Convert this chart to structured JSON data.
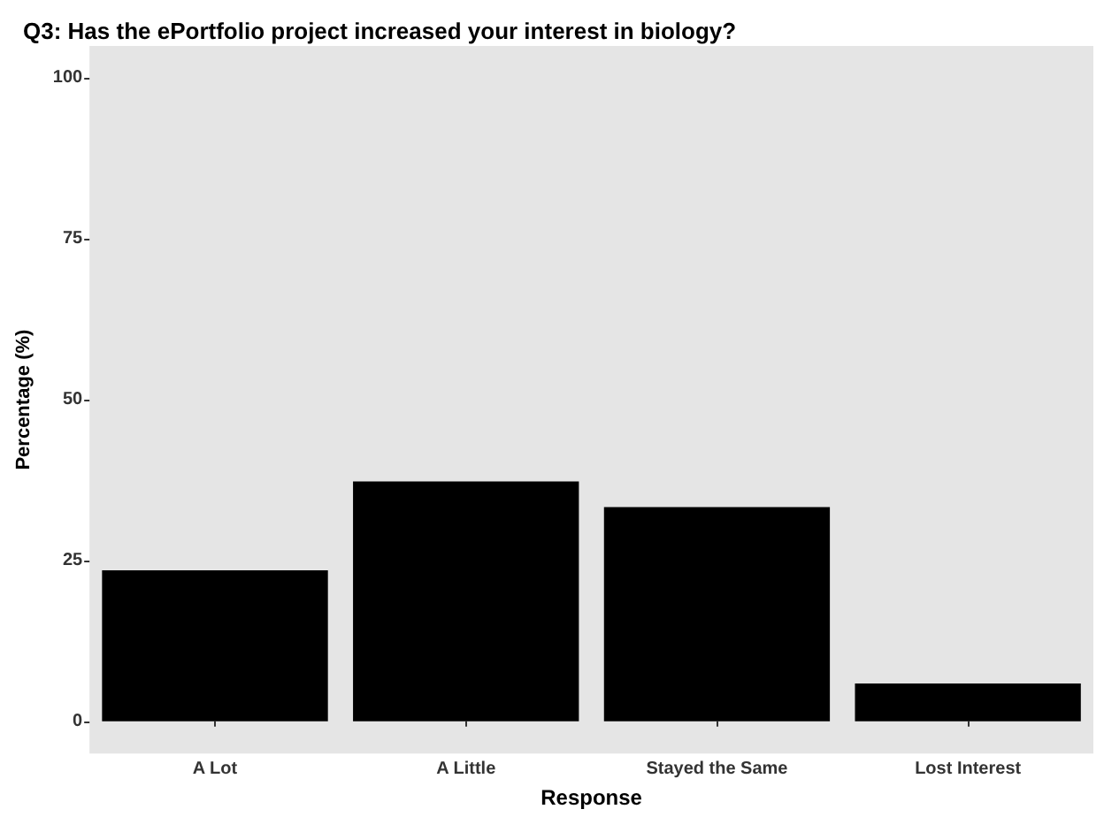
{
  "chart_data": {
    "type": "bar",
    "title": "Q3: Has the ePortfolio project increased your interest in biology?",
    "xlabel": "Response",
    "ylabel": "Percentage (%)",
    "categories": [
      "A Lot",
      "A Little",
      "Stayed the Same",
      "Lost Interest"
    ],
    "values": [
      23.5,
      37.3,
      33.3,
      5.9
    ],
    "color": "#000000",
    "ylim": [
      -5,
      105
    ],
    "yticks": [
      0,
      25,
      50,
      75,
      100
    ],
    "grid": false
  }
}
